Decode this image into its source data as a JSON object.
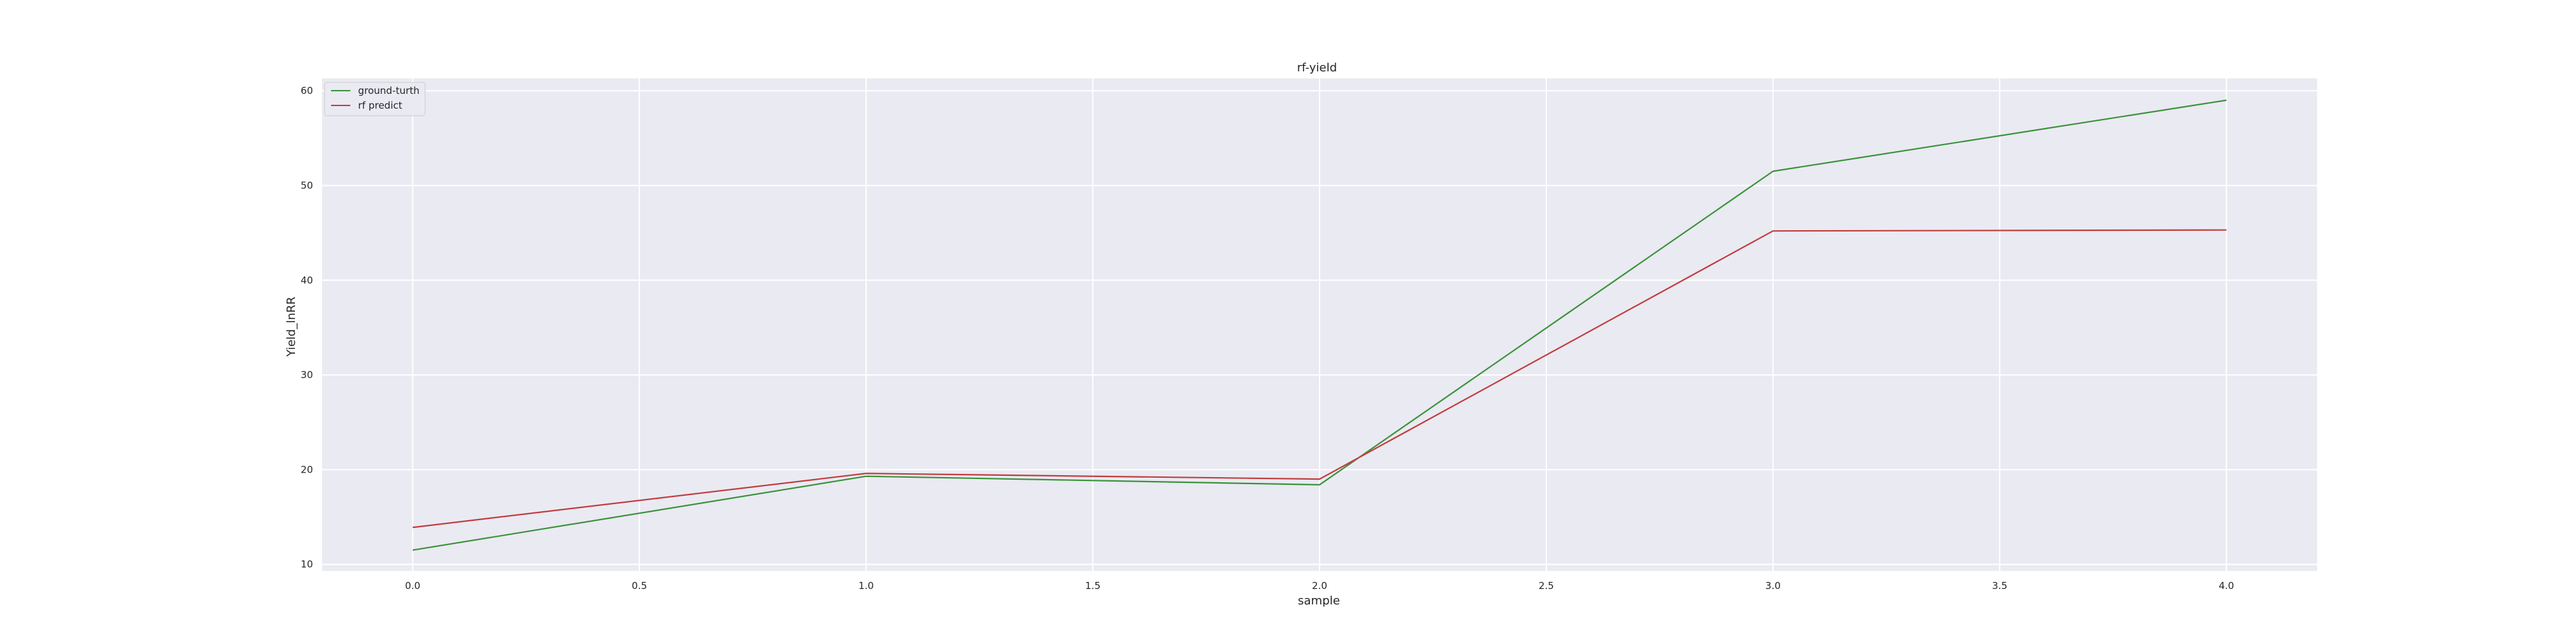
{
  "chart_data": {
    "type": "line",
    "title": "rf-yield",
    "xlabel": "sample",
    "ylabel": "Yield_lnRR",
    "xlim": [
      -0.2,
      4.2
    ],
    "ylim": [
      9.3,
      61.3
    ],
    "x_ticks": [
      0.0,
      0.5,
      1.0,
      1.5,
      2.0,
      2.5,
      3.0,
      3.5,
      4.0
    ],
    "x_tick_labels": [
      "0.0",
      "0.5",
      "1.0",
      "1.5",
      "2.0",
      "2.5",
      "3.0",
      "3.5",
      "4.0"
    ],
    "y_ticks": [
      10,
      20,
      30,
      40,
      50,
      60
    ],
    "y_tick_labels": [
      "10",
      "20",
      "30",
      "40",
      "50",
      "60"
    ],
    "grid": true,
    "legend_position": "top-left",
    "x": [
      0,
      1,
      2,
      3,
      4
    ],
    "series": [
      {
        "name": "ground-turth",
        "color": "#3a923a",
        "values": [
          11.5,
          19.3,
          18.4,
          51.5,
          59.0
        ]
      },
      {
        "name": "rf predict",
        "color": "#c03d3e",
        "values": [
          13.9,
          19.6,
          19.0,
          45.2,
          45.3
        ]
      }
    ]
  },
  "style": {
    "plot_background": "#eaeaf2",
    "grid_color": "#ffffff",
    "text_color": "#262626"
  }
}
